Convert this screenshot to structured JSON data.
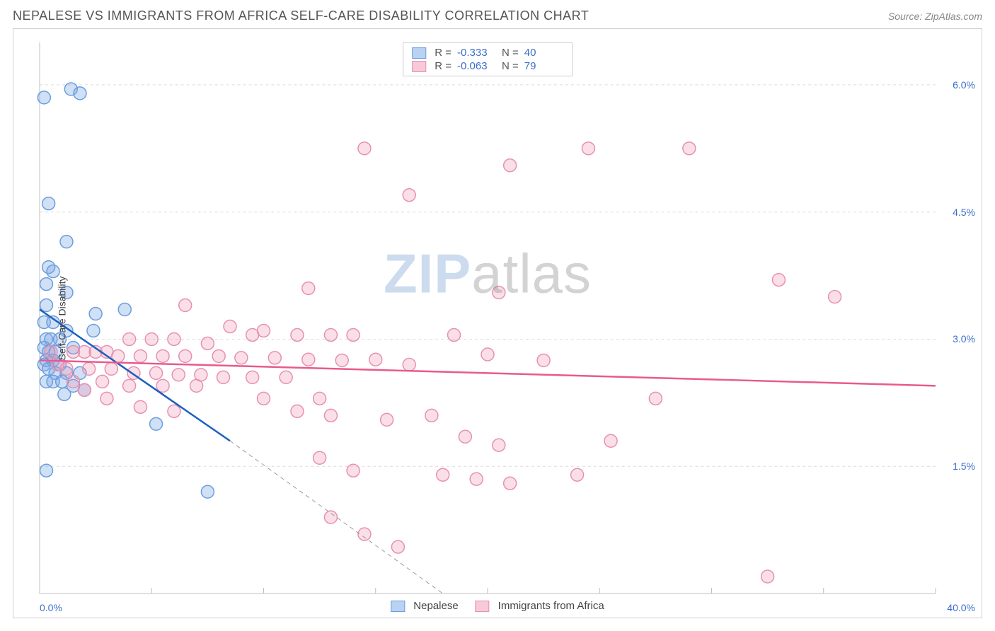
{
  "header": {
    "title": "NEPALESE VS IMMIGRANTS FROM AFRICA SELF-CARE DISABILITY CORRELATION CHART",
    "source_label": "Source: ZipAtlas.com"
  },
  "chart": {
    "type": "scatter",
    "ylabel": "Self-Care Disability",
    "xlim": [
      0.0,
      40.0
    ],
    "ylim": [
      0.0,
      6.5
    ],
    "xticks": [
      0,
      5,
      10,
      15,
      20,
      25,
      30,
      35,
      40
    ],
    "yticks": [
      1.5,
      3.0,
      4.5,
      6.0
    ],
    "xtick_labels": {
      "min": "0.0%",
      "max": "40.0%"
    },
    "ytick_labels": [
      "1.5%",
      "3.0%",
      "4.5%",
      "6.0%"
    ],
    "background_color": "#ffffff",
    "grid_color": "#dcdcdc",
    "axis_color": "#bfbfbf",
    "marker_radius": 9,
    "marker_stroke_width": 1.5,
    "line_width": 2.5,
    "watermark": {
      "text_a": "ZIP",
      "text_b": "atlas"
    },
    "series": [
      {
        "id": "nepalese",
        "label": "Nepalese",
        "color_fill": "rgba(120,165,225,0.35)",
        "color_stroke": "#6a9de0",
        "line_color": "#1b5fc1",
        "swatch_fill": "#b9d2f2",
        "swatch_stroke": "#6a9de0",
        "R": "-0.333",
        "N": "40",
        "regression": {
          "x1": 0.0,
          "y1": 3.35,
          "x2": 8.5,
          "y2": 1.8,
          "dash_extend_x2": 18.0,
          "dash_extend_y2": 0.0
        },
        "points": [
          [
            0.2,
            5.85
          ],
          [
            1.4,
            5.95
          ],
          [
            1.8,
            5.9
          ],
          [
            0.4,
            4.6
          ],
          [
            1.2,
            4.15
          ],
          [
            0.4,
            3.85
          ],
          [
            0.6,
            3.8
          ],
          [
            0.3,
            3.65
          ],
          [
            1.2,
            3.55
          ],
          [
            0.3,
            3.4
          ],
          [
            2.5,
            3.3
          ],
          [
            3.8,
            3.35
          ],
          [
            0.2,
            3.2
          ],
          [
            0.6,
            3.2
          ],
          [
            1.2,
            3.1
          ],
          [
            2.4,
            3.1
          ],
          [
            0.3,
            3.0
          ],
          [
            0.5,
            3.0
          ],
          [
            0.9,
            3.0
          ],
          [
            0.2,
            2.9
          ],
          [
            0.4,
            2.85
          ],
          [
            0.7,
            2.85
          ],
          [
            1.5,
            2.9
          ],
          [
            0.3,
            2.75
          ],
          [
            0.6,
            2.75
          ],
          [
            0.2,
            2.7
          ],
          [
            0.9,
            2.7
          ],
          [
            0.4,
            2.65
          ],
          [
            0.7,
            2.6
          ],
          [
            1.2,
            2.6
          ],
          [
            1.8,
            2.6
          ],
          [
            0.3,
            2.5
          ],
          [
            0.6,
            2.5
          ],
          [
            1.0,
            2.5
          ],
          [
            1.5,
            2.45
          ],
          [
            1.1,
            2.35
          ],
          [
            0.3,
            1.45
          ],
          [
            5.2,
            2.0
          ],
          [
            7.5,
            1.2
          ],
          [
            2.0,
            2.4
          ]
        ]
      },
      {
        "id": "africa",
        "label": "Immigrants from Africa",
        "color_fill": "rgba(240,150,180,0.30)",
        "color_stroke": "#e890b0",
        "line_color": "#e85a8e",
        "swatch_fill": "#f7c9d9",
        "swatch_stroke": "#e890b0",
        "R": "-0.063",
        "N": "79",
        "regression": {
          "x1": 0.0,
          "y1": 2.75,
          "x2": 40.0,
          "y2": 2.45
        },
        "points": [
          [
            14.5,
            5.25
          ],
          [
            24.5,
            5.25
          ],
          [
            21.0,
            5.05
          ],
          [
            16.5,
            4.7
          ],
          [
            29.0,
            5.25
          ],
          [
            33.0,
            3.7
          ],
          [
            35.5,
            3.5
          ],
          [
            12.0,
            3.6
          ],
          [
            20.5,
            3.55
          ],
          [
            6.5,
            3.4
          ],
          [
            8.5,
            3.15
          ],
          [
            9.5,
            3.05
          ],
          [
            10.0,
            3.1
          ],
          [
            11.5,
            3.05
          ],
          [
            13.0,
            3.05
          ],
          [
            14.0,
            3.05
          ],
          [
            18.5,
            3.05
          ],
          [
            4.0,
            3.0
          ],
          [
            5.0,
            3.0
          ],
          [
            6.0,
            3.0
          ],
          [
            7.5,
            2.95
          ],
          [
            0.5,
            2.85
          ],
          [
            1.5,
            2.85
          ],
          [
            2.0,
            2.85
          ],
          [
            2.5,
            2.85
          ],
          [
            3.0,
            2.85
          ],
          [
            3.5,
            2.8
          ],
          [
            4.5,
            2.8
          ],
          [
            5.5,
            2.8
          ],
          [
            6.5,
            2.8
          ],
          [
            8.0,
            2.8
          ],
          [
            9.0,
            2.78
          ],
          [
            10.5,
            2.78
          ],
          [
            12.0,
            2.76
          ],
          [
            13.5,
            2.75
          ],
          [
            15.0,
            2.76
          ],
          [
            16.5,
            2.7
          ],
          [
            20.0,
            2.82
          ],
          [
            22.5,
            2.75
          ],
          [
            0.8,
            2.7
          ],
          [
            1.2,
            2.65
          ],
          [
            2.2,
            2.65
          ],
          [
            3.2,
            2.65
          ],
          [
            4.2,
            2.6
          ],
          [
            5.2,
            2.6
          ],
          [
            6.2,
            2.58
          ],
          [
            7.2,
            2.58
          ],
          [
            8.2,
            2.55
          ],
          [
            9.5,
            2.55
          ],
          [
            11.0,
            2.55
          ],
          [
            1.5,
            2.5
          ],
          [
            2.8,
            2.5
          ],
          [
            4.0,
            2.45
          ],
          [
            5.5,
            2.45
          ],
          [
            7.0,
            2.45
          ],
          [
            12.5,
            2.3
          ],
          [
            27.5,
            2.3
          ],
          [
            10.0,
            2.3
          ],
          [
            11.5,
            2.15
          ],
          [
            13.0,
            2.1
          ],
          [
            17.5,
            2.1
          ],
          [
            15.5,
            2.05
          ],
          [
            25.5,
            1.8
          ],
          [
            19.0,
            1.85
          ],
          [
            20.5,
            1.75
          ],
          [
            12.5,
            1.6
          ],
          [
            14.0,
            1.45
          ],
          [
            18.0,
            1.4
          ],
          [
            19.5,
            1.35
          ],
          [
            21.0,
            1.3
          ],
          [
            24.0,
            1.4
          ],
          [
            13.0,
            0.9
          ],
          [
            14.5,
            0.7
          ],
          [
            16.0,
            0.55
          ],
          [
            32.5,
            0.2
          ],
          [
            3.0,
            2.3
          ],
          [
            4.5,
            2.2
          ],
          [
            6.0,
            2.15
          ],
          [
            2.0,
            2.4
          ]
        ]
      }
    ],
    "bottom_legend": [
      {
        "swatch_fill": "#b9d2f2",
        "swatch_stroke": "#6a9de0",
        "label": "Nepalese"
      },
      {
        "swatch_fill": "#f7c9d9",
        "swatch_stroke": "#e890b0",
        "label": "Immigrants from Africa"
      }
    ]
  }
}
